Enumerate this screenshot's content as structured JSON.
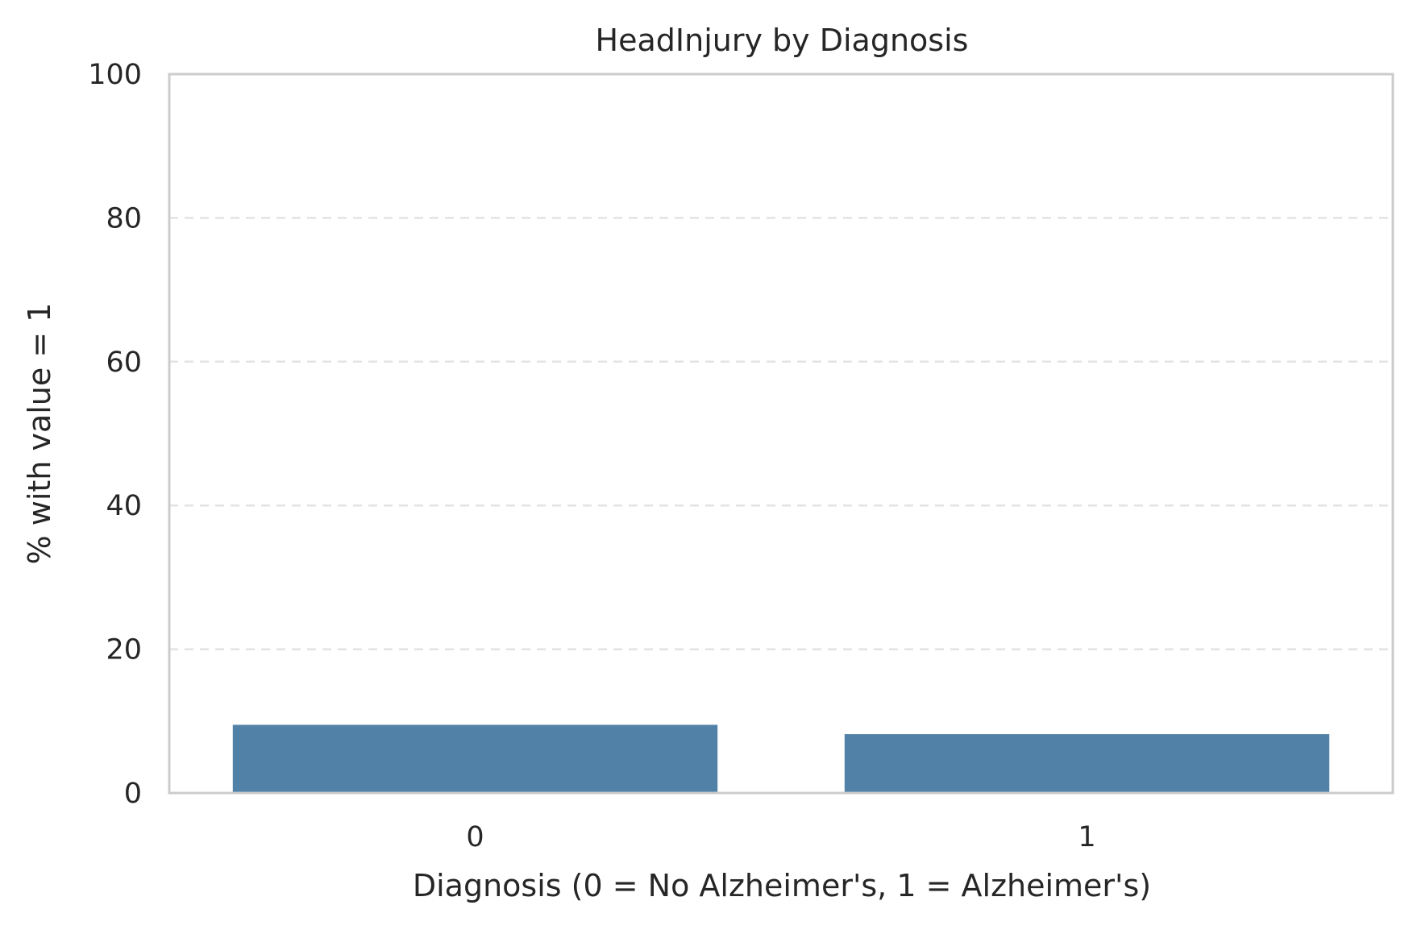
{
  "chart_data": {
    "type": "bar",
    "title": "HeadInjury by Diagnosis",
    "xlabel": "Diagnosis (0 = No Alzheimer's, 1 = Alzheimer's)",
    "ylabel": "% with value = 1",
    "categories": [
      "0",
      "1"
    ],
    "values": [
      9.6,
      8.3
    ],
    "ylim": [
      0,
      100
    ],
    "yticks": [
      0,
      20,
      40,
      60,
      80,
      100
    ],
    "grid": "y-dashed",
    "legend": "none",
    "bar_color": "#5181a7"
  }
}
